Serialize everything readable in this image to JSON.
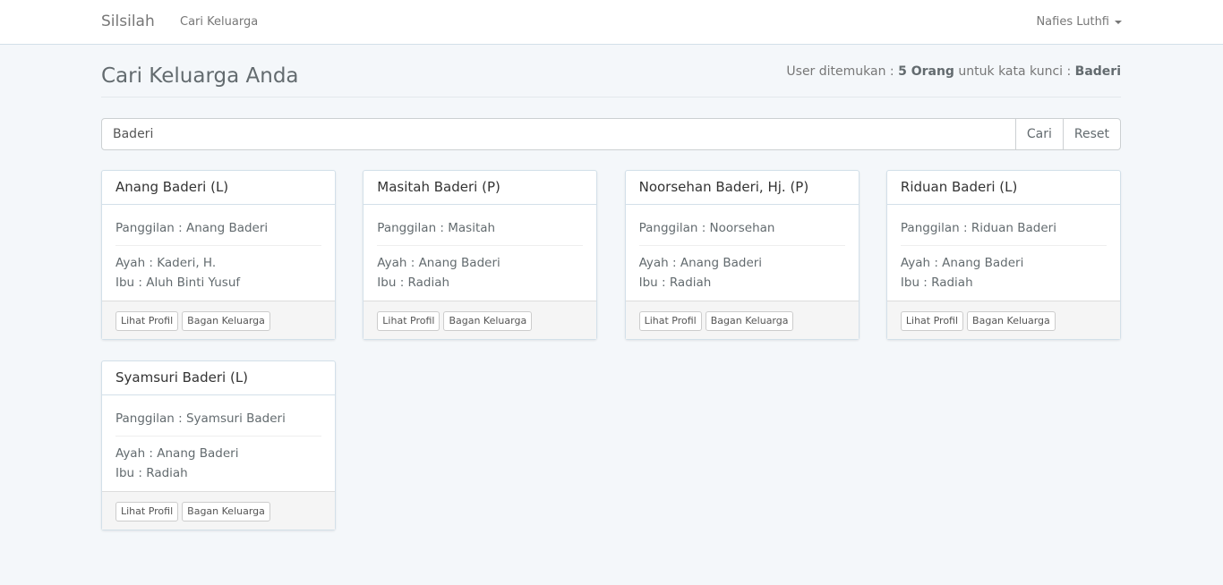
{
  "nav": {
    "brand": "Silsilah",
    "link": "Cari Keluarga",
    "user": "Nafies Luthfi"
  },
  "page": {
    "title": "Cari Keluarga Anda",
    "summary_prefix": "User ditemukan : ",
    "count": "5 Orang",
    "summary_mid": " untuk kata kunci : ",
    "keyword": "Baderi"
  },
  "search": {
    "value": "Baderi",
    "search_label": "Cari",
    "reset_label": "Reset"
  },
  "cards": [
    {
      "name": "Anang Baderi (L)",
      "panggilan": "Panggilan : Anang Baderi",
      "ayah": "Ayah : Kaderi, H.",
      "ibu": "Ibu : Aluh Binti Yusuf"
    },
    {
      "name": "Masitah Baderi (P)",
      "panggilan": "Panggilan : Masitah",
      "ayah": "Ayah : Anang Baderi",
      "ibu": "Ibu : Radiah"
    },
    {
      "name": "Noorsehan Baderi, Hj. (P)",
      "panggilan": "Panggilan : Noorsehan",
      "ayah": "Ayah : Anang Baderi",
      "ibu": "Ibu : Radiah"
    },
    {
      "name": "Riduan Baderi (L)",
      "panggilan": "Panggilan : Riduan Baderi",
      "ayah": "Ayah : Anang Baderi",
      "ibu": "Ibu : Radiah"
    },
    {
      "name": "Syamsuri Baderi (L)",
      "panggilan": "Panggilan : Syamsuri Baderi",
      "ayah": "Ayah : Anang Baderi",
      "ibu": "Ibu : Radiah"
    }
  ],
  "card_buttons": {
    "profile": "Lihat Profil",
    "chart": "Bagan Keluarga"
  }
}
